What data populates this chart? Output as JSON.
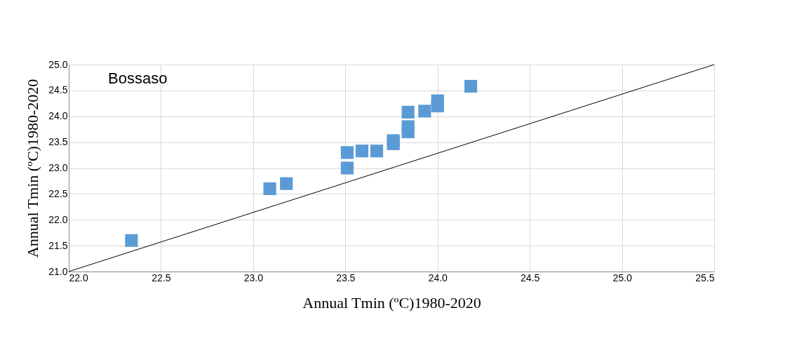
{
  "chart_data": {
    "type": "scatter",
    "xlabel": "Annual Tmin (ºC)1980-2020",
    "ylabel": "Annual Tmin (ºC)1980-2020",
    "annotations": [
      "Bossaso"
    ],
    "xlim": [
      22.0,
      25.5
    ],
    "ylim": [
      21.0,
      25.0
    ],
    "xticks": [
      {
        "value": 22,
        "label": "22.0"
      },
      {
        "value": 22.5,
        "label": "22.5"
      },
      {
        "value": 23,
        "label": "23.0"
      },
      {
        "value": 23.5,
        "label": "23.5"
      },
      {
        "value": 24,
        "label": "24.0"
      },
      {
        "value": 24.5,
        "label": "24.5"
      },
      {
        "value": 25,
        "label": "25.0"
      },
      {
        "value": 25.5,
        "label": "25.5"
      }
    ],
    "yticks": [
      {
        "value": 21,
        "label": "21.0"
      },
      {
        "value": 21.5,
        "label": "21.5"
      },
      {
        "value": 22,
        "label": "22.0"
      },
      {
        "value": 22.5,
        "label": "22.5"
      },
      {
        "value": 23,
        "label": "23.0"
      },
      {
        "value": 23.5,
        "label": "23.5"
      },
      {
        "value": 24,
        "label": "24.0"
      },
      {
        "value": 24.5,
        "label": "24.5"
      },
      {
        "value": 25,
        "label": "25.0"
      }
    ],
    "grid": true,
    "series": [
      {
        "marker": "square",
        "color": "#5b9bd5",
        "x": [
          22.34,
          23.09,
          23.18,
          23.51,
          23.51,
          23.59,
          23.67,
          23.76,
          23.76,
          23.84,
          23.84,
          23.84,
          23.93,
          24.0,
          24.0,
          24.18
        ],
        "values": [
          21.6,
          22.6,
          22.7,
          23.0,
          23.3,
          23.33,
          23.33,
          23.47,
          23.53,
          23.7,
          23.8,
          24.08,
          24.1,
          24.2,
          24.3,
          24.58
        ]
      },
      {
        "type": "line",
        "color": "#000000",
        "line_style": "solid",
        "x": [
          22.0,
          25.5
        ],
        "values": [
          21.0,
          25.0
        ]
      }
    ]
  }
}
